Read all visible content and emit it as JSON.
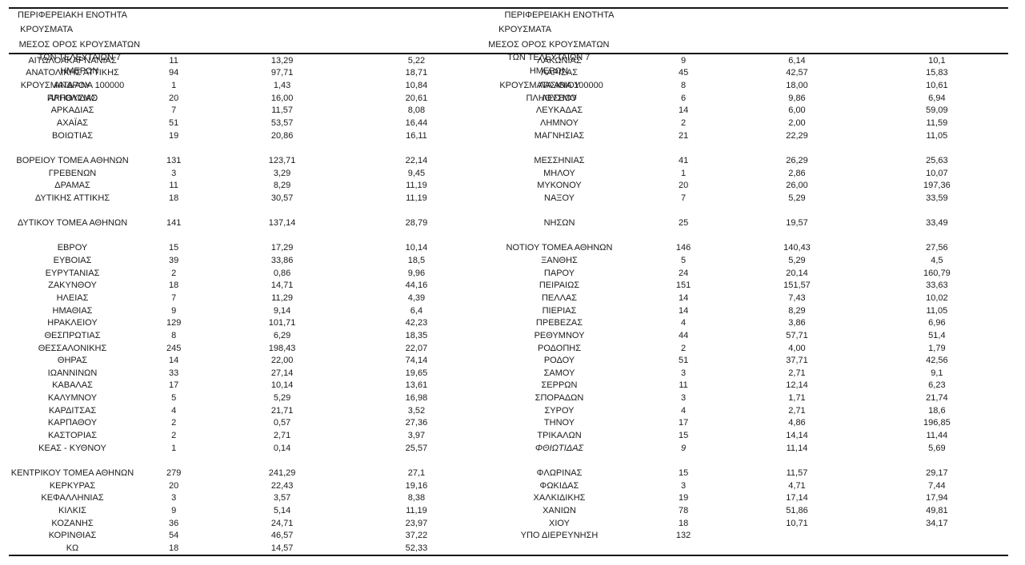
{
  "page": {
    "background": "#ffffff",
    "text_color": "#1b1b1b",
    "rule_color": "#151515"
  },
  "table": {
    "header": {
      "region": "ΠΕΡΙΦΕΡΕΙΑΚΗ ΕΝΟΤΗΤΑ",
      "cases": "ΚΡΟΥΣΜΑΤΑ",
      "avg7_line1": "ΜΕΣΟΣ ΟΡΟΣ ΚΡΟΥΣΜΑΤΩΝ",
      "avg7_line2": "ΤΩΝ ΤΕΛΕΥΤΑΙΩΝ 7",
      "avg7_line3": "ΗΜΕΡΩΝ",
      "per100k_line1": "ΚΡΟΥΣΜΑΤΑ ΑΝΑ 100000",
      "per100k_line2": "ΠΛΗΘΥΣΜΟ"
    },
    "left_rows": [
      {
        "name": "ΑΙΤΩΛΟΑΚΑΡΝΑΝΙΑΣ",
        "cases": "11",
        "avg7": "13,29",
        "per100k": "5,22"
      },
      {
        "name": "ΑΝΑΤΟΛΙΚΗΣ ΑΤΤΙΚΗΣ",
        "cases": "94",
        "avg7": "97,71",
        "per100k": "18,71"
      },
      {
        "name": "ΑΝΔΡΟΥ",
        "cases": "1",
        "avg7": "1,43",
        "per100k": "10,84"
      },
      {
        "name": "ΑΡΓΟΛΙΔΑΣ",
        "cases": "20",
        "avg7": "16,00",
        "per100k": "20,61"
      },
      {
        "name": "ΑΡΚΑΔΙΑΣ",
        "cases": "7",
        "avg7": "11,57",
        "per100k": "8,08"
      },
      {
        "name": "ΑΧΑΪΑΣ",
        "cases": "51",
        "avg7": "53,57",
        "per100k": "16,44"
      },
      {
        "name": "ΒΟΙΩΤΙΑΣ",
        "cases": "19",
        "avg7": "20,86",
        "per100k": "16,11"
      },
      {
        "blank": true
      },
      {
        "name": "ΒΟΡΕΙΟΥ ΤΟΜΕΑ ΑΘΗΝΩΝ",
        "cases": "131",
        "avg7": "123,71",
        "per100k": "22,14"
      },
      {
        "name": "ΓΡΕΒΕΝΩΝ",
        "cases": "3",
        "avg7": "3,29",
        "per100k": "9,45"
      },
      {
        "name": "ΔΡΑΜΑΣ",
        "cases": "11",
        "avg7": "8,29",
        "per100k": "11,19"
      },
      {
        "name": "ΔΥΤΙΚΗΣ ΑΤΤΙΚΗΣ",
        "cases": "18",
        "avg7": "30,57",
        "per100k": "11,19"
      },
      {
        "blank": true
      },
      {
        "name": "ΔΥΤΙΚΟΥ ΤΟΜΕΑ ΑΘΗΝΩΝ",
        "cases": "141",
        "avg7": "137,14",
        "per100k": "28,79"
      },
      {
        "blank": true
      },
      {
        "name": "ΕΒΡΟΥ",
        "cases": "15",
        "avg7": "17,29",
        "per100k": "10,14"
      },
      {
        "name": "ΕΥΒΟΙΑΣ",
        "cases": "39",
        "avg7": "33,86",
        "per100k": "18,5"
      },
      {
        "name": "ΕΥΡΥΤΑΝΙΑΣ",
        "cases": "2",
        "avg7": "0,86",
        "per100k": "9,96"
      },
      {
        "name": "ΖΑΚΥΝΘΟΥ",
        "cases": "18",
        "avg7": "14,71",
        "per100k": "44,16"
      },
      {
        "name": "ΗΛΕΙΑΣ",
        "cases": "7",
        "avg7": "11,29",
        "per100k": "4,39"
      },
      {
        "name": "ΗΜΑΘΙΑΣ",
        "cases": "9",
        "avg7": "9,14",
        "per100k": "6,4"
      },
      {
        "name": "ΗΡΑΚΛΕΙΟΥ",
        "cases": "129",
        "avg7": "101,71",
        "per100k": "42,23"
      },
      {
        "name": "ΘΕΣΠΡΩΤΙΑΣ",
        "cases": "8",
        "avg7": "6,29",
        "per100k": "18,35"
      },
      {
        "name": "ΘΕΣΣΑΛΟΝΙΚΗΣ",
        "cases": "245",
        "avg7": "198,43",
        "per100k": "22,07"
      },
      {
        "name": "ΘΗΡΑΣ",
        "cases": "14",
        "avg7": "22,00",
        "per100k": "74,14"
      },
      {
        "name": "ΙΩΑΝΝΙΝΩΝ",
        "cases": "33",
        "avg7": "27,14",
        "per100k": "19,65"
      },
      {
        "name": "ΚΑΒΑΛΑΣ",
        "cases": "17",
        "avg7": "10,14",
        "per100k": "13,61"
      },
      {
        "name": "ΚΑΛΥΜΝΟΥ",
        "cases": "5",
        "avg7": "5,29",
        "per100k": "16,98"
      },
      {
        "name": "ΚΑΡΔΙΤΣΑΣ",
        "cases": "4",
        "avg7": "21,71",
        "per100k": "3,52"
      },
      {
        "name": "ΚΑΡΠΑΘΟΥ",
        "cases": "2",
        "avg7": "0,57",
        "per100k": "27,36"
      },
      {
        "name": "ΚΑΣΤΟΡΙΑΣ",
        "cases": "2",
        "avg7": "2,71",
        "per100k": "3,97"
      },
      {
        "name": "ΚΕΑΣ - ΚΥΘΝΟΥ",
        "cases": "1",
        "avg7": "0,14",
        "per100k": "25,57"
      },
      {
        "blank": true
      },
      {
        "name": "ΚΕΝΤΡΙΚΟΥ ΤΟΜΕΑ ΑΘΗΝΩΝ",
        "cases": "279",
        "avg7": "241,29",
        "per100k": "27,1"
      },
      {
        "name": "ΚΕΡΚΥΡΑΣ",
        "cases": "20",
        "avg7": "22,43",
        "per100k": "19,16"
      },
      {
        "name": "ΚΕΦΑΛΛΗΝΙΑΣ",
        "cases": "3",
        "avg7": "3,57",
        "per100k": "8,38"
      },
      {
        "name": "ΚΙΛΚΙΣ",
        "cases": "9",
        "avg7": "5,14",
        "per100k": "11,19"
      },
      {
        "name": "ΚΟΖΑΝΗΣ",
        "cases": "36",
        "avg7": "24,71",
        "per100k": "23,97"
      },
      {
        "name": "ΚΟΡΙΝΘΙΑΣ",
        "cases": "54",
        "avg7": "46,57",
        "per100k": "37,22"
      },
      {
        "name": "ΚΩ",
        "cases": "18",
        "avg7": "14,57",
        "per100k": "52,33"
      }
    ],
    "right_rows": [
      {
        "name": "ΛΑΚΩΝΙΑΣ",
        "cases": "9",
        "avg7": "6,14",
        "per100k": "10,1"
      },
      {
        "name": "ΛΑΡΙΣΑΣ",
        "cases": "45",
        "avg7": "42,57",
        "per100k": "15,83"
      },
      {
        "name": "ΛΑΣΙΘΙΟΥ",
        "cases": "8",
        "avg7": "18,00",
        "per100k": "10,61"
      },
      {
        "name": "ΛΕΣΒΟΥ",
        "cases": "6",
        "avg7": "9,86",
        "per100k": "6,94"
      },
      {
        "name": "ΛΕΥΚΑΔΑΣ",
        "cases": "14",
        "avg7": "6,00",
        "per100k": "59,09"
      },
      {
        "name": "ΛΗΜΝΟΥ",
        "cases": "2",
        "avg7": "2,00",
        "per100k": "11,59"
      },
      {
        "name": "ΜΑΓΝΗΣΙΑΣ",
        "cases": "21",
        "avg7": "22,29",
        "per100k": "11,05"
      },
      {
        "blank": true
      },
      {
        "name": "ΜΕΣΣΗΝΙΑΣ",
        "cases": "41",
        "avg7": "26,29",
        "per100k": "25,63"
      },
      {
        "name": "ΜΗΛΟΥ",
        "cases": "1",
        "avg7": "2,86",
        "per100k": "10,07"
      },
      {
        "name": "ΜΥΚΟΝΟΥ",
        "cases": "20",
        "avg7": "26,00",
        "per100k": "197,36"
      },
      {
        "name": "ΝΑΞΟΥ",
        "cases": "7",
        "avg7": "5,29",
        "per100k": "33,59"
      },
      {
        "blank": true
      },
      {
        "name": "ΝΗΣΩΝ",
        "cases": "25",
        "avg7": "19,57",
        "per100k": "33,49"
      },
      {
        "blank": true
      },
      {
        "name": "ΝΟΤΙΟΥ ΤΟΜΕΑ ΑΘΗΝΩΝ",
        "cases": "146",
        "avg7": "140,43",
        "per100k": "27,56"
      },
      {
        "name": "ΞΑΝΘΗΣ",
        "cases": "5",
        "avg7": "5,29",
        "per100k": "4,5"
      },
      {
        "name": "ΠΑΡΟΥ",
        "cases": "24",
        "avg7": "20,14",
        "per100k": "160,79"
      },
      {
        "name": "ΠΕΙΡΑΙΩΣ",
        "cases": "151",
        "avg7": "151,57",
        "per100k": "33,63"
      },
      {
        "name": "ΠΕΛΛΑΣ",
        "cases": "14",
        "avg7": "7,43",
        "per100k": "10,02"
      },
      {
        "name": "ΠΙΕΡΙΑΣ",
        "cases": "14",
        "avg7": "8,29",
        "per100k": "11,05"
      },
      {
        "name": "ΠΡΕΒΕΖΑΣ",
        "cases": "4",
        "avg7": "3,86",
        "per100k": "6,96"
      },
      {
        "name": "ΡΕΘΥΜΝΟΥ",
        "cases": "44",
        "avg7": "57,71",
        "per100k": "51,4"
      },
      {
        "name": "ΡΟΔΟΠΗΣ",
        "cases": "2",
        "avg7": "4,00",
        "per100k": "1,79"
      },
      {
        "name": "ΡΟΔΟΥ",
        "cases": "51",
        "avg7": "37,71",
        "per100k": "42,56"
      },
      {
        "name": "ΣΑΜΟΥ",
        "cases": "3",
        "avg7": "2,71",
        "per100k": "9,1"
      },
      {
        "name": "ΣΕΡΡΩΝ",
        "cases": "11",
        "avg7": "12,14",
        "per100k": "6,23"
      },
      {
        "name": "ΣΠΟΡΑΔΩΝ",
        "cases": "3",
        "avg7": "1,71",
        "per100k": "21,74"
      },
      {
        "name": "ΣΥΡΟΥ",
        "cases": "4",
        "avg7": "2,71",
        "per100k": "18,6"
      },
      {
        "name": "ΤΗΝΟΥ",
        "cases": "17",
        "avg7": "4,86",
        "per100k": "196,85"
      },
      {
        "name": "ΤΡΙΚΑΛΩΝ",
        "cases": "15",
        "avg7": "14,14",
        "per100k": "11,44"
      },
      {
        "name": "ΦΘΙΩΤΙΔΑΣ",
        "cases": "9",
        "avg7": "11,14",
        "per100k": "5,69",
        "italic": true
      },
      {
        "blank": true
      },
      {
        "name": "ΦΛΩΡΙΝΑΣ",
        "cases": "15",
        "avg7": "11,57",
        "per100k": "29,17"
      },
      {
        "name": "ΦΩΚΙΔΑΣ",
        "cases": "3",
        "avg7": "4,71",
        "per100k": "7,44"
      },
      {
        "name": "ΧΑΛΚΙΔΙΚΗΣ",
        "cases": "19",
        "avg7": "17,14",
        "per100k": "17,94"
      },
      {
        "name": "ΧΑΝΙΩΝ",
        "cases": "78",
        "avg7": "51,86",
        "per100k": "49,81"
      },
      {
        "name": "ΧΙΟΥ",
        "cases": "18",
        "avg7": "10,71",
        "per100k": "34,17"
      },
      {
        "name": "ΥΠΟ ΔΙΕΡΕΥΝΗΣΗ",
        "cases": "132",
        "avg7": "",
        "per100k": ""
      },
      {
        "blank": true
      }
    ]
  }
}
